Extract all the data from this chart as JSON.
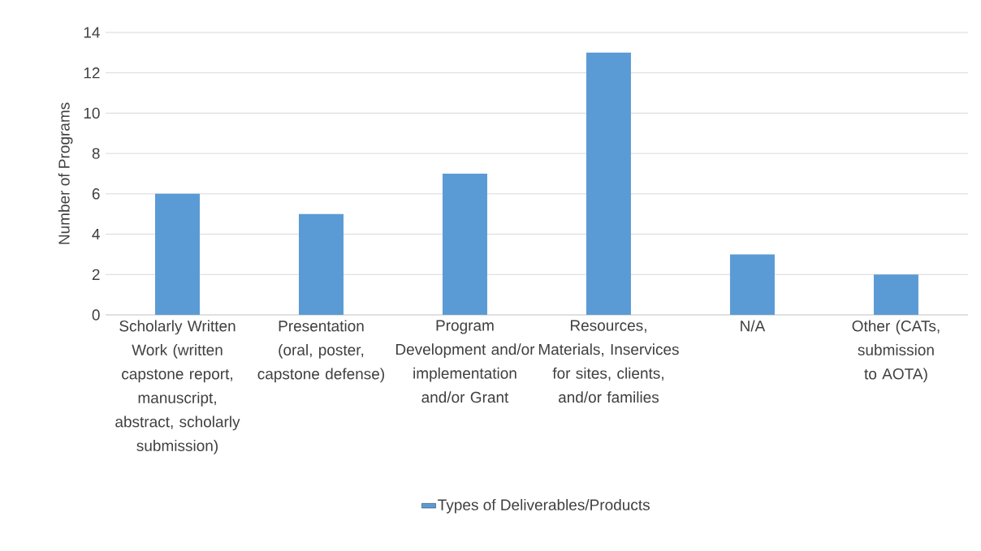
{
  "chart_data": {
    "type": "bar",
    "ylabel": "Number of Programs",
    "categories": [
      "Scholarly Written Work (written capstone report, manuscript, abstract, scholarly submission)",
      "Presentation (oral, poster, capstone defense)",
      "Program Development and/or implementation and/or Grant",
      "Resources, Materials, Inservices for sites, clients, and/or families",
      "N/A",
      "Other (CATs, submission to AOTA)"
    ],
    "series": [
      {
        "name": "Types of Deliverables/Products",
        "color": "#5b9bd5",
        "values": [
          6,
          5,
          7,
          13,
          3,
          2
        ]
      }
    ],
    "ylim": [
      0,
      14
    ],
    "yticks": [
      0,
      2,
      4,
      6,
      8,
      10,
      12,
      14
    ],
    "grid": "y",
    "legend": "bottom"
  }
}
